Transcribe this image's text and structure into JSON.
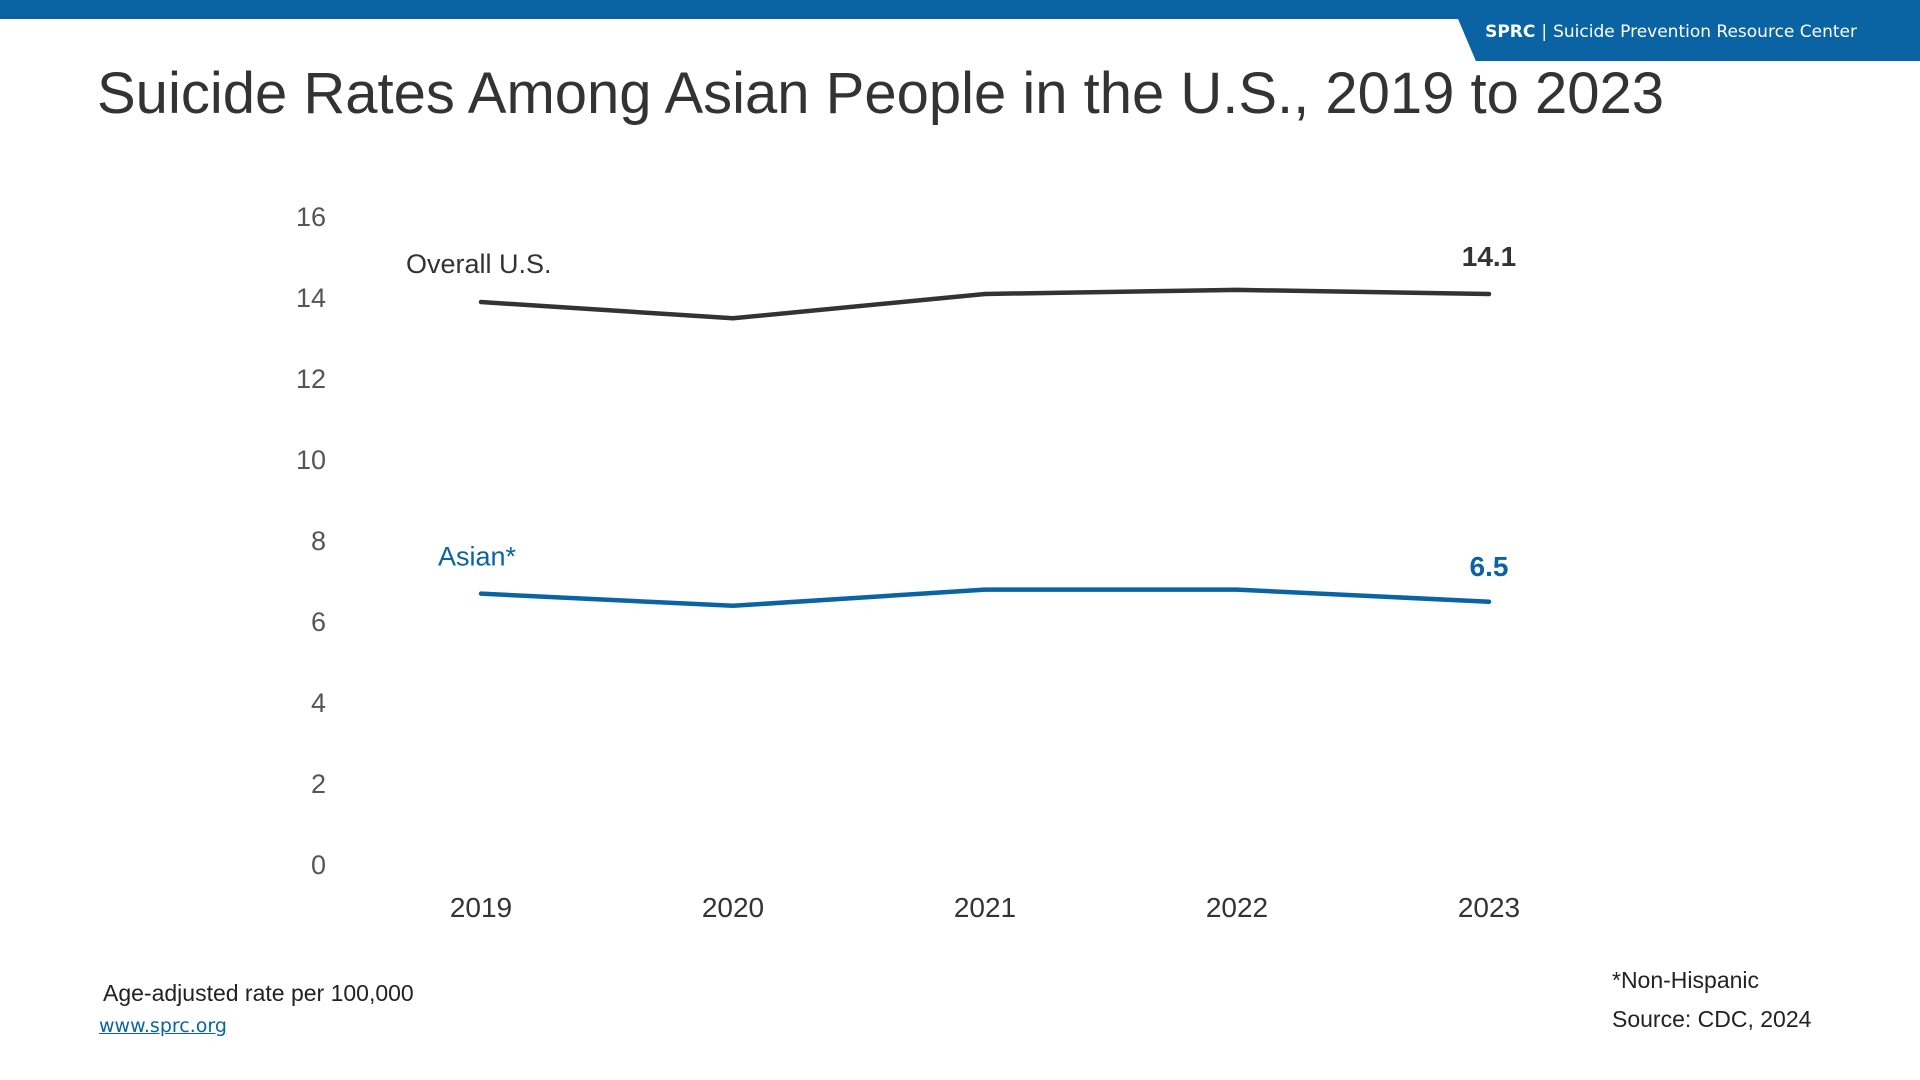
{
  "header": {
    "brand_abbr": "SPRC",
    "brand_sep": "|",
    "brand_name": "Suicide Prevention Resource Center",
    "bar_color": "#0a64a4"
  },
  "title": "Suicide Rates Among Asian People in the U.S., 2019 to 2023",
  "chart_data": {
    "type": "line",
    "title": "Suicide Rates Among Asian People in the U.S., 2019 to 2023",
    "x": [
      "2019",
      "2020",
      "2021",
      "2022",
      "2023"
    ],
    "y_ticks": [
      "0",
      "2",
      "4",
      "6",
      "8",
      "10",
      "12",
      "14",
      "16"
    ],
    "ylim": [
      0,
      16
    ],
    "grid": false,
    "legend": "inline labels near lines",
    "series": [
      {
        "name": "Overall U.S.",
        "values": [
          13.9,
          13.5,
          14.1,
          14.2,
          14.1
        ],
        "color": "#333333",
        "end_label": "14.1"
      },
      {
        "name": "Asian*",
        "values": [
          6.7,
          6.4,
          6.8,
          6.8,
          6.5
        ],
        "color": "#0a64a4",
        "end_label": "6.5"
      }
    ]
  },
  "footer": {
    "units": "Age-adjusted rate per 100,000",
    "link": "www.sprc.org",
    "note": "*Non-Hispanic",
    "source": "Source: CDC, 2024"
  }
}
